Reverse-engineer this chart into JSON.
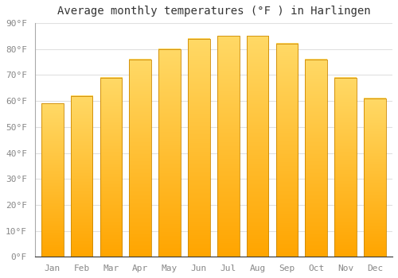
{
  "months": [
    "Jan",
    "Feb",
    "Mar",
    "Apr",
    "May",
    "Jun",
    "Jul",
    "Aug",
    "Sep",
    "Oct",
    "Nov",
    "Dec"
  ],
  "values": [
    59,
    62,
    69,
    76,
    80,
    84,
    85,
    85,
    82,
    76,
    69,
    61
  ],
  "bar_color_top": "#FFD966",
  "bar_color_bottom": "#FFA500",
  "bar_edge_color": "#CC8800",
  "title": "Average monthly temperatures (°F ) in Harlingen",
  "ylim": [
    0,
    90
  ],
  "yticks": [
    0,
    10,
    20,
    30,
    40,
    50,
    60,
    70,
    80,
    90
  ],
  "ytick_labels": [
    "0°F",
    "10°F",
    "20°F",
    "30°F",
    "40°F",
    "50°F",
    "60°F",
    "70°F",
    "80°F",
    "90°F"
  ],
  "background_color": "#FFFFFF",
  "grid_color": "#E0E0E0",
  "title_fontsize": 10,
  "tick_fontsize": 8,
  "bar_width": 0.75
}
